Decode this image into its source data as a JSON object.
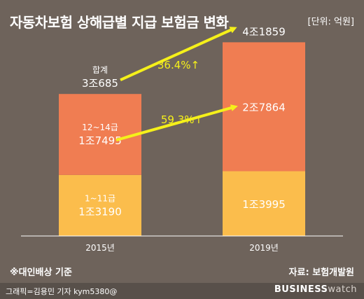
{
  "header": {
    "title": "자동차보험 상해급별 지급 보험금 변화",
    "unit": "[단위: 억원]"
  },
  "footnote": "※대인배상 기준",
  "source": "자료: 보험개발원",
  "credit": "그래픽=김용민 기자 kym5380@",
  "brand": {
    "main": "BUSINESS",
    "sub": "watch"
  },
  "colors": {
    "background": "#6e635b",
    "lower_segment": "#fbbd4c",
    "upper_segment": "#f07d52",
    "arrow": "#f5f01a",
    "baseline": "#ffffff"
  },
  "chart_data": {
    "type": "bar",
    "stacked": true,
    "categories": [
      "2015년",
      "2019년"
    ],
    "series": [
      {
        "name": "1~11급",
        "values": [
          13190,
          13995
        ],
        "labels": [
          "1조3190",
          "1조3995"
        ]
      },
      {
        "name": "12~14급",
        "values": [
          17495,
          27864
        ],
        "labels": [
          "1조7495",
          "2조7864"
        ]
      }
    ],
    "totals": {
      "name": "합계",
      "values": [
        30685,
        41859
      ],
      "labels": [
        "3조685",
        "4조1859"
      ]
    },
    "annotations": [
      {
        "text": "36.4%↑",
        "from": "2015년 합계",
        "to": "2019년 합계"
      },
      {
        "text": "59.3%↑",
        "from": "2015년 12~14급",
        "to": "2019년 12~14급"
      }
    ],
    "ylim": [
      0,
      46000
    ],
    "grid": false
  }
}
